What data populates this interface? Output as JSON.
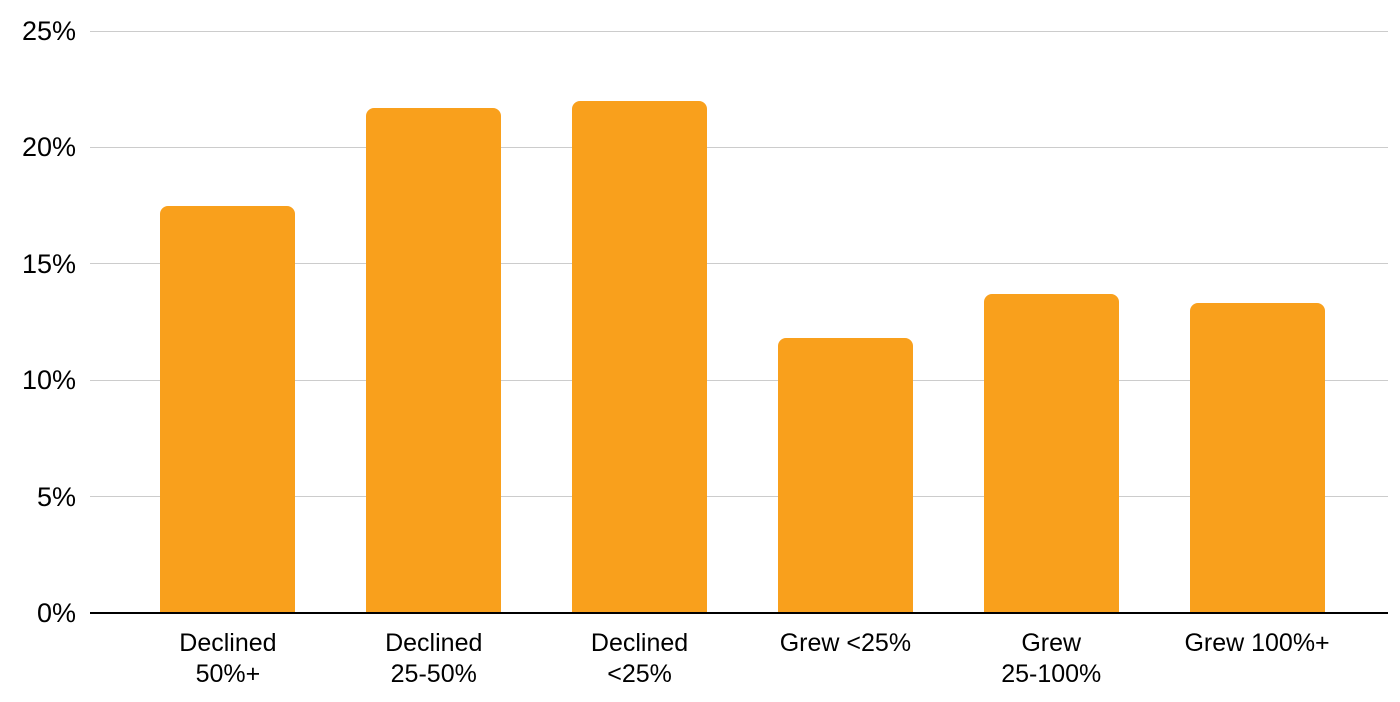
{
  "chart_data": {
    "type": "bar",
    "title": "",
    "xlabel": "",
    "ylabel": "",
    "categories": [
      "Declined 50%+",
      "Declined 25-50%",
      "Declined <25%",
      "Grew <25%",
      "Grew 25-100%",
      "Grew 100%+"
    ],
    "category_lines": [
      [
        "Declined",
        "50%+"
      ],
      [
        "Declined",
        "25-50%"
      ],
      [
        "Declined",
        "<25%"
      ],
      [
        "Grew <25%"
      ],
      [
        "Grew",
        "25-100%"
      ],
      [
        "Grew 100%+"
      ]
    ],
    "values": [
      17.5,
      21.7,
      22.0,
      11.8,
      13.7,
      13.3
    ],
    "ylim": [
      0,
      25
    ],
    "yticks": [
      0,
      5,
      10,
      15,
      20,
      25
    ],
    "ytick_labels": [
      "0%",
      "5%",
      "10%",
      "15%",
      "20%",
      "25%"
    ],
    "grid": true,
    "legend": false,
    "colors": {
      "bar": "#F9A01C",
      "gridline": "#CCCCCC",
      "axis_line": "#000000",
      "text": "#000000",
      "background": "#FFFFFF"
    }
  }
}
